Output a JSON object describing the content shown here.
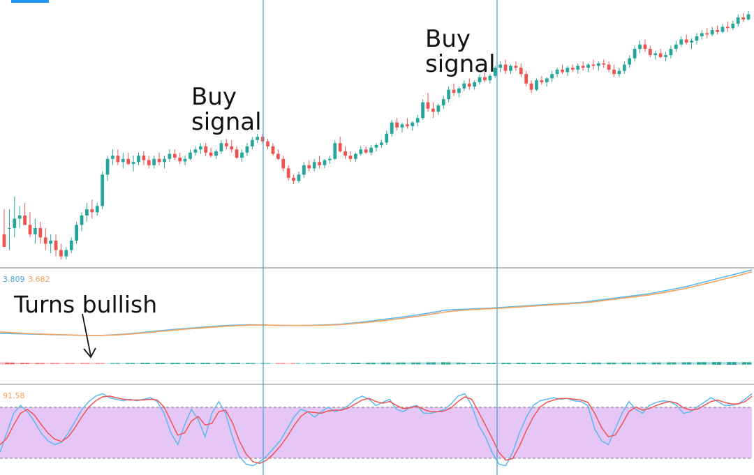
{
  "annotations": {
    "buy_signal_1": [
      "Buy",
      "signal"
    ],
    "buy_signal_2": [
      "Buy",
      "signal"
    ],
    "turns_bullish": "Turns bullish"
  },
  "macd_readout": {
    "macd": "3.809",
    "signal": "3.682"
  },
  "stoch_readout": {
    "value": "91.58"
  },
  "colors": {
    "bull": "#26a69a",
    "bear": "#ef5350",
    "macd_line": "#5db8f0",
    "signal_line": "#f7a35c",
    "stoch_band": "#e6c5f7",
    "vline": "#4aa3d9",
    "pane_sep": "#9e9e9e"
  },
  "chart_data": [
    {
      "type": "candlestick",
      "pane": "price",
      "candles": [
        [
          0.6,
          1,
          0.4,
          0.4
        ],
        [
          0.7,
          1,
          0.35,
          0.7
        ],
        [
          0.7,
          1.2,
          0.55,
          0.85
        ],
        [
          0.85,
          1.05,
          0.7,
          0.9
        ],
        [
          0.9,
          1.1,
          0.75,
          0.75
        ],
        [
          0.75,
          0.95,
          0.55,
          0.6
        ],
        [
          0.6,
          0.85,
          0.45,
          0.7
        ],
        [
          0.7,
          0.8,
          0.45,
          0.55
        ],
        [
          0.55,
          0.7,
          0.35,
          0.45
        ],
        [
          0.45,
          0.6,
          0.3,
          0.5
        ],
        [
          0.5,
          0.6,
          0.25,
          0.35
        ],
        [
          0.35,
          0.45,
          0.2,
          0.25
        ],
        [
          0.25,
          0.4,
          0.2,
          0.35
        ],
        [
          0.35,
          0.55,
          0.3,
          0.5
        ],
        [
          0.5,
          0.8,
          0.45,
          0.75
        ],
        [
          0.75,
          0.95,
          0.65,
          0.9
        ],
        [
          0.9,
          1.1,
          0.8,
          1
        ],
        [
          1,
          1.15,
          0.85,
          0.95
        ],
        [
          0.95,
          1.1,
          0.9,
          1.05
        ],
        [
          1.05,
          1.6,
          1,
          1.55
        ],
        [
          1.55,
          1.85,
          1.45,
          1.8
        ],
        [
          1.8,
          1.95,
          1.7,
          1.85
        ],
        [
          1.85,
          1.95,
          1.7,
          1.75
        ],
        [
          1.75,
          1.9,
          1.65,
          1.8
        ],
        [
          1.8,
          1.9,
          1.7,
          1.72
        ],
        [
          1.72,
          1.85,
          1.6,
          1.75
        ],
        [
          1.75,
          1.9,
          1.7,
          1.85
        ],
        [
          1.85,
          1.92,
          1.7,
          1.78
        ],
        [
          1.78,
          1.85,
          1.65,
          1.7
        ],
        [
          1.7,
          1.85,
          1.65,
          1.8
        ],
        [
          1.8,
          1.9,
          1.7,
          1.75
        ],
        [
          1.75,
          1.85,
          1.65,
          1.8
        ],
        [
          1.8,
          1.95,
          1.75,
          1.88
        ],
        [
          1.88,
          1.95,
          1.78,
          1.82
        ],
        [
          1.82,
          1.9,
          1.72,
          1.76
        ],
        [
          1.76,
          1.85,
          1.7,
          1.8
        ],
        [
          1.8,
          1.95,
          1.78,
          1.9
        ],
        [
          1.9,
          2,
          1.85,
          1.95
        ],
        [
          1.95,
          2.05,
          1.88,
          2
        ],
        [
          2,
          2.05,
          1.85,
          1.9
        ],
        [
          1.9,
          1.98,
          1.82,
          1.85
        ],
        [
          1.85,
          1.95,
          1.8,
          1.92
        ],
        [
          1.92,
          2.1,
          1.88,
          2.05
        ],
        [
          2.05,
          2.12,
          1.95,
          2
        ],
        [
          2,
          2.1,
          1.9,
          1.95
        ],
        [
          1.95,
          2,
          1.8,
          1.82
        ],
        [
          1.82,
          1.95,
          1.75,
          1.9
        ],
        [
          1.9,
          2.05,
          1.85,
          2
        ],
        [
          2,
          2.15,
          1.95,
          2.1
        ],
        [
          2.1,
          2.2,
          2.05,
          2.15
        ],
        [
          2.15,
          2.2,
          2.05,
          2.08
        ],
        [
          2.08,
          2.12,
          1.95,
          2
        ],
        [
          2,
          2.05,
          1.85,
          1.88
        ],
        [
          1.88,
          1.95,
          1.78,
          1.8
        ],
        [
          1.8,
          1.85,
          1.6,
          1.65
        ],
        [
          1.65,
          1.7,
          1.45,
          1.5
        ],
        [
          1.5,
          1.55,
          1.4,
          1.45
        ],
        [
          1.45,
          1.6,
          1.42,
          1.55
        ],
        [
          1.55,
          1.75,
          1.5,
          1.7
        ],
        [
          1.7,
          1.78,
          1.6,
          1.65
        ],
        [
          1.65,
          1.8,
          1.6,
          1.75
        ],
        [
          1.75,
          1.85,
          1.65,
          1.7
        ],
        [
          1.7,
          1.8,
          1.65,
          1.78
        ],
        [
          1.78,
          1.85,
          1.72,
          1.8
        ],
        [
          1.8,
          2.1,
          1.78,
          2.05
        ],
        [
          2.05,
          2.15,
          1.9,
          1.92
        ],
        [
          1.92,
          2,
          1.8,
          1.85
        ],
        [
          1.85,
          1.92,
          1.75,
          1.8
        ],
        [
          1.8,
          1.9,
          1.75,
          1.88
        ],
        [
          1.88,
          2,
          1.85,
          1.95
        ],
        [
          1.95,
          2,
          1.88,
          1.9
        ],
        [
          1.9,
          2.02,
          1.86,
          1.98
        ],
        [
          1.98,
          2.05,
          1.92,
          2.02
        ],
        [
          2.02,
          2.1,
          1.98,
          2.06
        ],
        [
          2.06,
          2.25,
          2.02,
          2.2
        ],
        [
          2.2,
          2.42,
          2.15,
          2.38
        ],
        [
          2.38,
          2.45,
          2.25,
          2.3
        ],
        [
          2.3,
          2.38,
          2.22,
          2.35
        ],
        [
          2.35,
          2.45,
          2.28,
          2.32
        ],
        [
          2.32,
          2.4,
          2.25,
          2.38
        ],
        [
          2.38,
          2.5,
          2.32,
          2.45
        ],
        [
          2.45,
          2.75,
          2.42,
          2.7
        ],
        [
          2.7,
          2.85,
          2.55,
          2.6
        ],
        [
          2.6,
          2.7,
          2.45,
          2.55
        ],
        [
          2.55,
          2.68,
          2.5,
          2.65
        ],
        [
          2.65,
          2.8,
          2.6,
          2.75
        ],
        [
          2.75,
          2.95,
          2.7,
          2.9
        ],
        [
          2.9,
          3,
          2.8,
          2.85
        ],
        [
          2.85,
          2.95,
          2.78,
          2.92
        ],
        [
          2.92,
          3.05,
          2.88,
          3
        ],
        [
          3,
          3.08,
          2.9,
          2.95
        ],
        [
          2.95,
          3.05,
          2.9,
          3.02
        ],
        [
          3.02,
          3.15,
          2.98,
          3.1
        ],
        [
          3.1,
          3.18,
          3.02,
          3.05
        ],
        [
          3.05,
          3.15,
          3,
          3.12
        ],
        [
          3.12,
          3.28,
          3.08,
          3.25
        ],
        [
          3.25,
          3.35,
          3.18,
          3.3
        ],
        [
          3.3,
          3.38,
          3.15,
          3.2
        ],
        [
          3.2,
          3.3,
          3.15,
          3.28
        ],
        [
          3.28,
          3.35,
          3.2,
          3.25
        ],
        [
          3.25,
          3.32,
          3.1,
          3.15
        ],
        [
          3.15,
          3.2,
          2.95,
          3
        ],
        [
          3,
          3.05,
          2.85,
          2.9
        ],
        [
          2.9,
          3.08,
          2.88,
          3.05
        ],
        [
          3.05,
          3.12,
          2.98,
          3.02
        ],
        [
          3.02,
          3.1,
          2.95,
          3.08
        ],
        [
          3.08,
          3.2,
          3.02,
          3.15
        ],
        [
          3.15,
          3.25,
          3.1,
          3.22
        ],
        [
          3.22,
          3.3,
          3.15,
          3.18
        ],
        [
          3.18,
          3.28,
          3.12,
          3.25
        ],
        [
          3.25,
          3.3,
          3.18,
          3.22
        ],
        [
          3.22,
          3.32,
          3.15,
          3.28
        ],
        [
          3.28,
          3.35,
          3.2,
          3.25
        ],
        [
          3.25,
          3.32,
          3.18,
          3.3
        ],
        [
          3.3,
          3.38,
          3.22,
          3.28
        ],
        [
          3.28,
          3.35,
          3.2,
          3.32
        ],
        [
          3.32,
          3.38,
          3.25,
          3.3
        ],
        [
          3.3,
          3.35,
          3.18,
          3.22
        ],
        [
          3.22,
          3.3,
          3.1,
          3.15
        ],
        [
          3.15,
          3.25,
          3.1,
          3.2
        ],
        [
          3.2,
          3.35,
          3.15,
          3.3
        ],
        [
          3.3,
          3.45,
          3.25,
          3.4
        ],
        [
          3.4,
          3.6,
          3.35,
          3.55
        ],
        [
          3.55,
          3.68,
          3.48,
          3.62
        ],
        [
          3.62,
          3.7,
          3.5,
          3.55
        ],
        [
          3.55,
          3.6,
          3.42,
          3.45
        ],
        [
          3.45,
          3.52,
          3.38,
          3.48
        ],
        [
          3.48,
          3.55,
          3.4,
          3.42
        ],
        [
          3.42,
          3.5,
          3.35,
          3.45
        ],
        [
          3.45,
          3.6,
          3.4,
          3.55
        ],
        [
          3.55,
          3.68,
          3.5,
          3.62
        ],
        [
          3.62,
          3.75,
          3.58,
          3.7
        ],
        [
          3.7,
          3.78,
          3.62,
          3.65
        ],
        [
          3.65,
          3.72,
          3.55,
          3.68
        ],
        [
          3.68,
          3.8,
          3.62,
          3.75
        ],
        [
          3.75,
          3.85,
          3.7,
          3.8
        ],
        [
          3.8,
          3.88,
          3.72,
          3.78
        ],
        [
          3.78,
          3.9,
          3.75,
          3.85
        ],
        [
          3.85,
          3.92,
          3.78,
          3.82
        ],
        [
          3.82,
          3.95,
          3.8,
          3.9
        ],
        [
          3.9,
          3.98,
          3.82,
          3.88
        ],
        [
          3.88,
          4,
          3.85,
          3.95
        ],
        [
          3.95,
          4.1,
          3.9,
          4.05
        ],
        [
          4.05,
          4.12,
          3.98,
          4.02
        ],
        [
          4.02,
          4.15,
          4,
          4.1
        ]
      ],
      "vertical_markers": [
        49,
        94
      ],
      "columns": [
        "open",
        "high",
        "low",
        "close"
      ]
    },
    {
      "type": "line",
      "pane": "macd",
      "legend": [
        "3.809",
        "3.682"
      ],
      "series": [
        {
          "values": [
            -0.6,
            -0.62,
            -0.64,
            -0.66,
            -0.68,
            -0.7,
            -0.72,
            -0.74,
            -0.75,
            -0.74,
            -0.7,
            -0.65,
            -0.58,
            -0.5,
            -0.42,
            -0.35,
            -0.28,
            -0.22,
            -0.16,
            -0.1,
            -0.05,
            -0.02,
            0,
            -0.02,
            -0.04,
            -0.06,
            -0.06,
            -0.05,
            -0.03,
            0,
            0.05,
            0.12,
            0.2,
            0.3,
            0.4,
            0.5,
            0.6,
            0.72,
            0.85,
            1,
            1.05,
            1.08,
            1.12,
            1.15,
            1.2,
            1.25,
            1.3,
            1.35,
            1.4,
            1.45,
            1.5,
            1.55,
            1.65,
            1.75,
            1.85,
            1.95,
            2.05,
            2.15,
            2.3,
            2.45,
            2.6,
            2.8,
            3,
            3.2,
            3.4,
            3.6,
            3.809
          ]
        },
        {
          "values": [
            -0.5,
            -0.55,
            -0.6,
            -0.63,
            -0.66,
            -0.69,
            -0.71,
            -0.73,
            -0.74,
            -0.74,
            -0.72,
            -0.68,
            -0.62,
            -0.55,
            -0.47,
            -0.4,
            -0.33,
            -0.27,
            -0.21,
            -0.15,
            -0.1,
            -0.06,
            -0.03,
            -0.03,
            -0.04,
            -0.05,
            -0.06,
            -0.06,
            -0.05,
            -0.03,
            0.01,
            0.07,
            0.14,
            0.22,
            0.31,
            0.41,
            0.51,
            0.62,
            0.74,
            0.87,
            0.96,
            1.02,
            1.07,
            1.11,
            1.15,
            1.2,
            1.25,
            1.3,
            1.35,
            1.4,
            1.45,
            1.5,
            1.58,
            1.67,
            1.77,
            1.87,
            1.97,
            2.07,
            2.2,
            2.34,
            2.49,
            2.67,
            2.86,
            3.05,
            3.25,
            3.45,
            3.682
          ]
        }
      ]
    },
    {
      "type": "line",
      "pane": "stochastic",
      "legend": [
        "91.58"
      ],
      "band": [
        20,
        80
      ],
      "series": [
        {
          "values": [
            20,
            45,
            70,
            80,
            72,
            60,
            45,
            35,
            30,
            33,
            45,
            60,
            75,
            85,
            92,
            95,
            90,
            88,
            86,
            88,
            86,
            88,
            90,
            85,
            70,
            45,
            30,
            55,
            75,
            62,
            40,
            70,
            85,
            70,
            40,
            15,
            5,
            3,
            8,
            15,
            25,
            35,
            50,
            65,
            75,
            72,
            65,
            72,
            78,
            72,
            75,
            80,
            88,
            92,
            88,
            80,
            84,
            88,
            75,
            72,
            78,
            80,
            70,
            70,
            72,
            75,
            82,
            92,
            95,
            80,
            55,
            40,
            20,
            5,
            3,
            20,
            45,
            65,
            80,
            86,
            88,
            90,
            88,
            89,
            86,
            85,
            80,
            50,
            35,
            30,
            50,
            70,
            85,
            75,
            70,
            80,
            84,
            86,
            85,
            80,
            70,
            72,
            78,
            84,
            90,
            85,
            80,
            80,
            82,
            88,
            95
          ]
        },
        {
          "values": [
            30,
            38,
            55,
            70,
            75,
            68,
            56,
            45,
            37,
            34,
            40,
            52,
            66,
            78,
            86,
            91,
            92,
            90,
            88,
            87,
            87,
            87,
            88,
            87,
            78,
            60,
            42,
            45,
            60,
            66,
            55,
            57,
            72,
            74,
            58,
            35,
            18,
            8,
            6,
            10,
            18,
            28,
            40,
            54,
            66,
            72,
            71,
            70,
            73,
            74,
            74,
            77,
            82,
            87,
            89,
            85,
            83,
            85,
            80,
            76,
            77,
            79,
            75,
            72,
            72,
            73,
            77,
            85,
            91,
            88,
            72,
            55,
            38,
            20,
            10,
            12,
            28,
            48,
            65,
            78,
            84,
            87,
            89,
            89,
            88,
            87,
            84,
            70,
            52,
            40,
            42,
            56,
            72,
            78,
            74,
            76,
            80,
            83,
            85,
            83,
            77,
            74,
            75,
            80,
            85,
            87,
            84,
            82,
            82,
            85,
            91.58
          ]
        }
      ]
    }
  ]
}
